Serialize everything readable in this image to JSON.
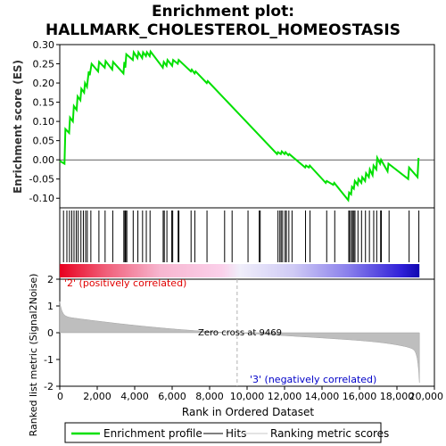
{
  "chart_data": {
    "type": "line",
    "title_line1": "Enrichment plot:",
    "title_line2": "HALLMARK_CHOLESTEROL_HOMEOSTASIS",
    "top_panel": {
      "ylabel": "Enrichment score (ES)",
      "ylim": [
        -0.125,
        0.3
      ],
      "yticks": [
        "0.30",
        "0.25",
        "0.20",
        "0.15",
        "0.10",
        "0.05",
        "0.00",
        "-0.05",
        "-0.10"
      ],
      "ytick_values": [
        0.3,
        0.25,
        0.2,
        0.15,
        0.1,
        0.05,
        0.0,
        -0.05,
        -0.1
      ],
      "series": [
        {
          "name": "Enrichment profile",
          "color": "#00e000",
          "x": [
            0,
            250,
            300,
            500,
            550,
            700,
            750,
            900,
            950,
            1100,
            1150,
            1300,
            1350,
            1450,
            1550,
            1600,
            1700,
            2050,
            2100,
            2400,
            2450,
            2800,
            2850,
            3400,
            3450,
            3500,
            3550,
            3900,
            3950,
            4150,
            4200,
            4400,
            4450,
            4600,
            4650,
            4800,
            4850,
            5500,
            5550,
            5700,
            5750,
            6000,
            6050,
            6300,
            6350,
            7000,
            7050,
            7200,
            7250,
            7850,
            7900,
            11600,
            11650,
            11800,
            11850,
            12000,
            12050,
            12200,
            12250,
            13100,
            13150,
            13300,
            13350,
            14200,
            14250,
            14600,
            14650,
            15400,
            15450,
            15550,
            15600,
            15700,
            15750,
            15900,
            15950,
            16100,
            16150,
            16300,
            16350,
            16500,
            16550,
            16700,
            16750,
            16900,
            16950,
            17100,
            17150,
            17500,
            17550,
            18600,
            18650,
            19100,
            19150
          ],
          "y": [
            -0.003,
            -0.01,
            0.08,
            0.07,
            0.11,
            0.1,
            0.14,
            0.13,
            0.165,
            0.155,
            0.185,
            0.175,
            0.2,
            0.19,
            0.23,
            0.22,
            0.25,
            0.23,
            0.255,
            0.24,
            0.257,
            0.235,
            0.255,
            0.225,
            0.255,
            0.24,
            0.275,
            0.26,
            0.28,
            0.265,
            0.28,
            0.265,
            0.28,
            0.27,
            0.28,
            0.27,
            0.282,
            0.24,
            0.255,
            0.245,
            0.26,
            0.245,
            0.26,
            0.25,
            0.26,
            0.23,
            0.235,
            0.225,
            0.23,
            0.2,
            0.205,
            0.015,
            0.02,
            0.015,
            0.022,
            0.015,
            0.02,
            0.012,
            0.015,
            -0.02,
            -0.015,
            -0.02,
            -0.015,
            -0.06,
            -0.055,
            -0.065,
            -0.06,
            -0.105,
            -0.085,
            -0.09,
            -0.07,
            -0.075,
            -0.055,
            -0.065,
            -0.05,
            -0.06,
            -0.045,
            -0.055,
            -0.035,
            -0.045,
            -0.025,
            -0.04,
            -0.015,
            -0.025,
            0.005,
            -0.01,
            0.0,
            -0.03,
            -0.01,
            -0.05,
            -0.02,
            -0.045,
            0.005
          ]
        }
      ]
    },
    "hits_panel": {
      "legend_label": "Hits",
      "hit_ranks": [
        200,
        380,
        520,
        640,
        760,
        880,
        980,
        1130,
        1260,
        1380,
        1470,
        1660,
        2090,
        2420,
        2830,
        3420,
        3480,
        3520,
        3580,
        3920,
        4170,
        4420,
        4620,
        4820,
        5520,
        5580,
        5720,
        5980,
        6030,
        6320,
        6360,
        7010,
        7210,
        7860,
        8800,
        9200,
        10050,
        10650,
        10700,
        11650,
        11750,
        11820,
        11900,
        12030,
        12100,
        12230,
        12400,
        13120,
        13360,
        14250,
        14680,
        15430,
        15480,
        15570,
        15630,
        15700,
        15760,
        15920,
        16110,
        16320,
        16530,
        16760,
        16920,
        17130,
        17170,
        17580,
        18650,
        19170
      ]
    },
    "rank_panel": {
      "ylabel": "Ranked list metric (Signal2Noise)",
      "ylim": [
        -2,
        2
      ],
      "yticks": [
        "2",
        "1",
        "0",
        "-1",
        "-2"
      ],
      "ytick_values": [
        2,
        1,
        0,
        -1,
        -2
      ],
      "legend_label": "Ranking metric scores",
      "metric_color": "#bebebe",
      "zero_cross_label": "Zero cross at 9469",
      "zero_cross": 9469,
      "pos_label": "'2' (positively correlated)",
      "neg_label": "'3' (negatively correlated)",
      "pos_color": "#e00000",
      "neg_color": "#0000c8"
    },
    "x_axis": {
      "xlabel": "Rank in Ordered Dataset",
      "xlim": [
        0,
        20000
      ],
      "xticks": [
        "0",
        "2,000",
        "4,000",
        "6,000",
        "8,000",
        "10,000",
        "12,000",
        "14,000",
        "16,000",
        "18,000",
        "20,000"
      ],
      "xtick_values": [
        0,
        2000,
        4000,
        6000,
        8000,
        10000,
        12000,
        14000,
        16000,
        18000,
        20000
      ],
      "n_genes": 19200
    },
    "legend": {
      "items": [
        "Enrichment profile",
        "Hits",
        "Ranking metric scores"
      ],
      "placement": "bottom"
    }
  }
}
